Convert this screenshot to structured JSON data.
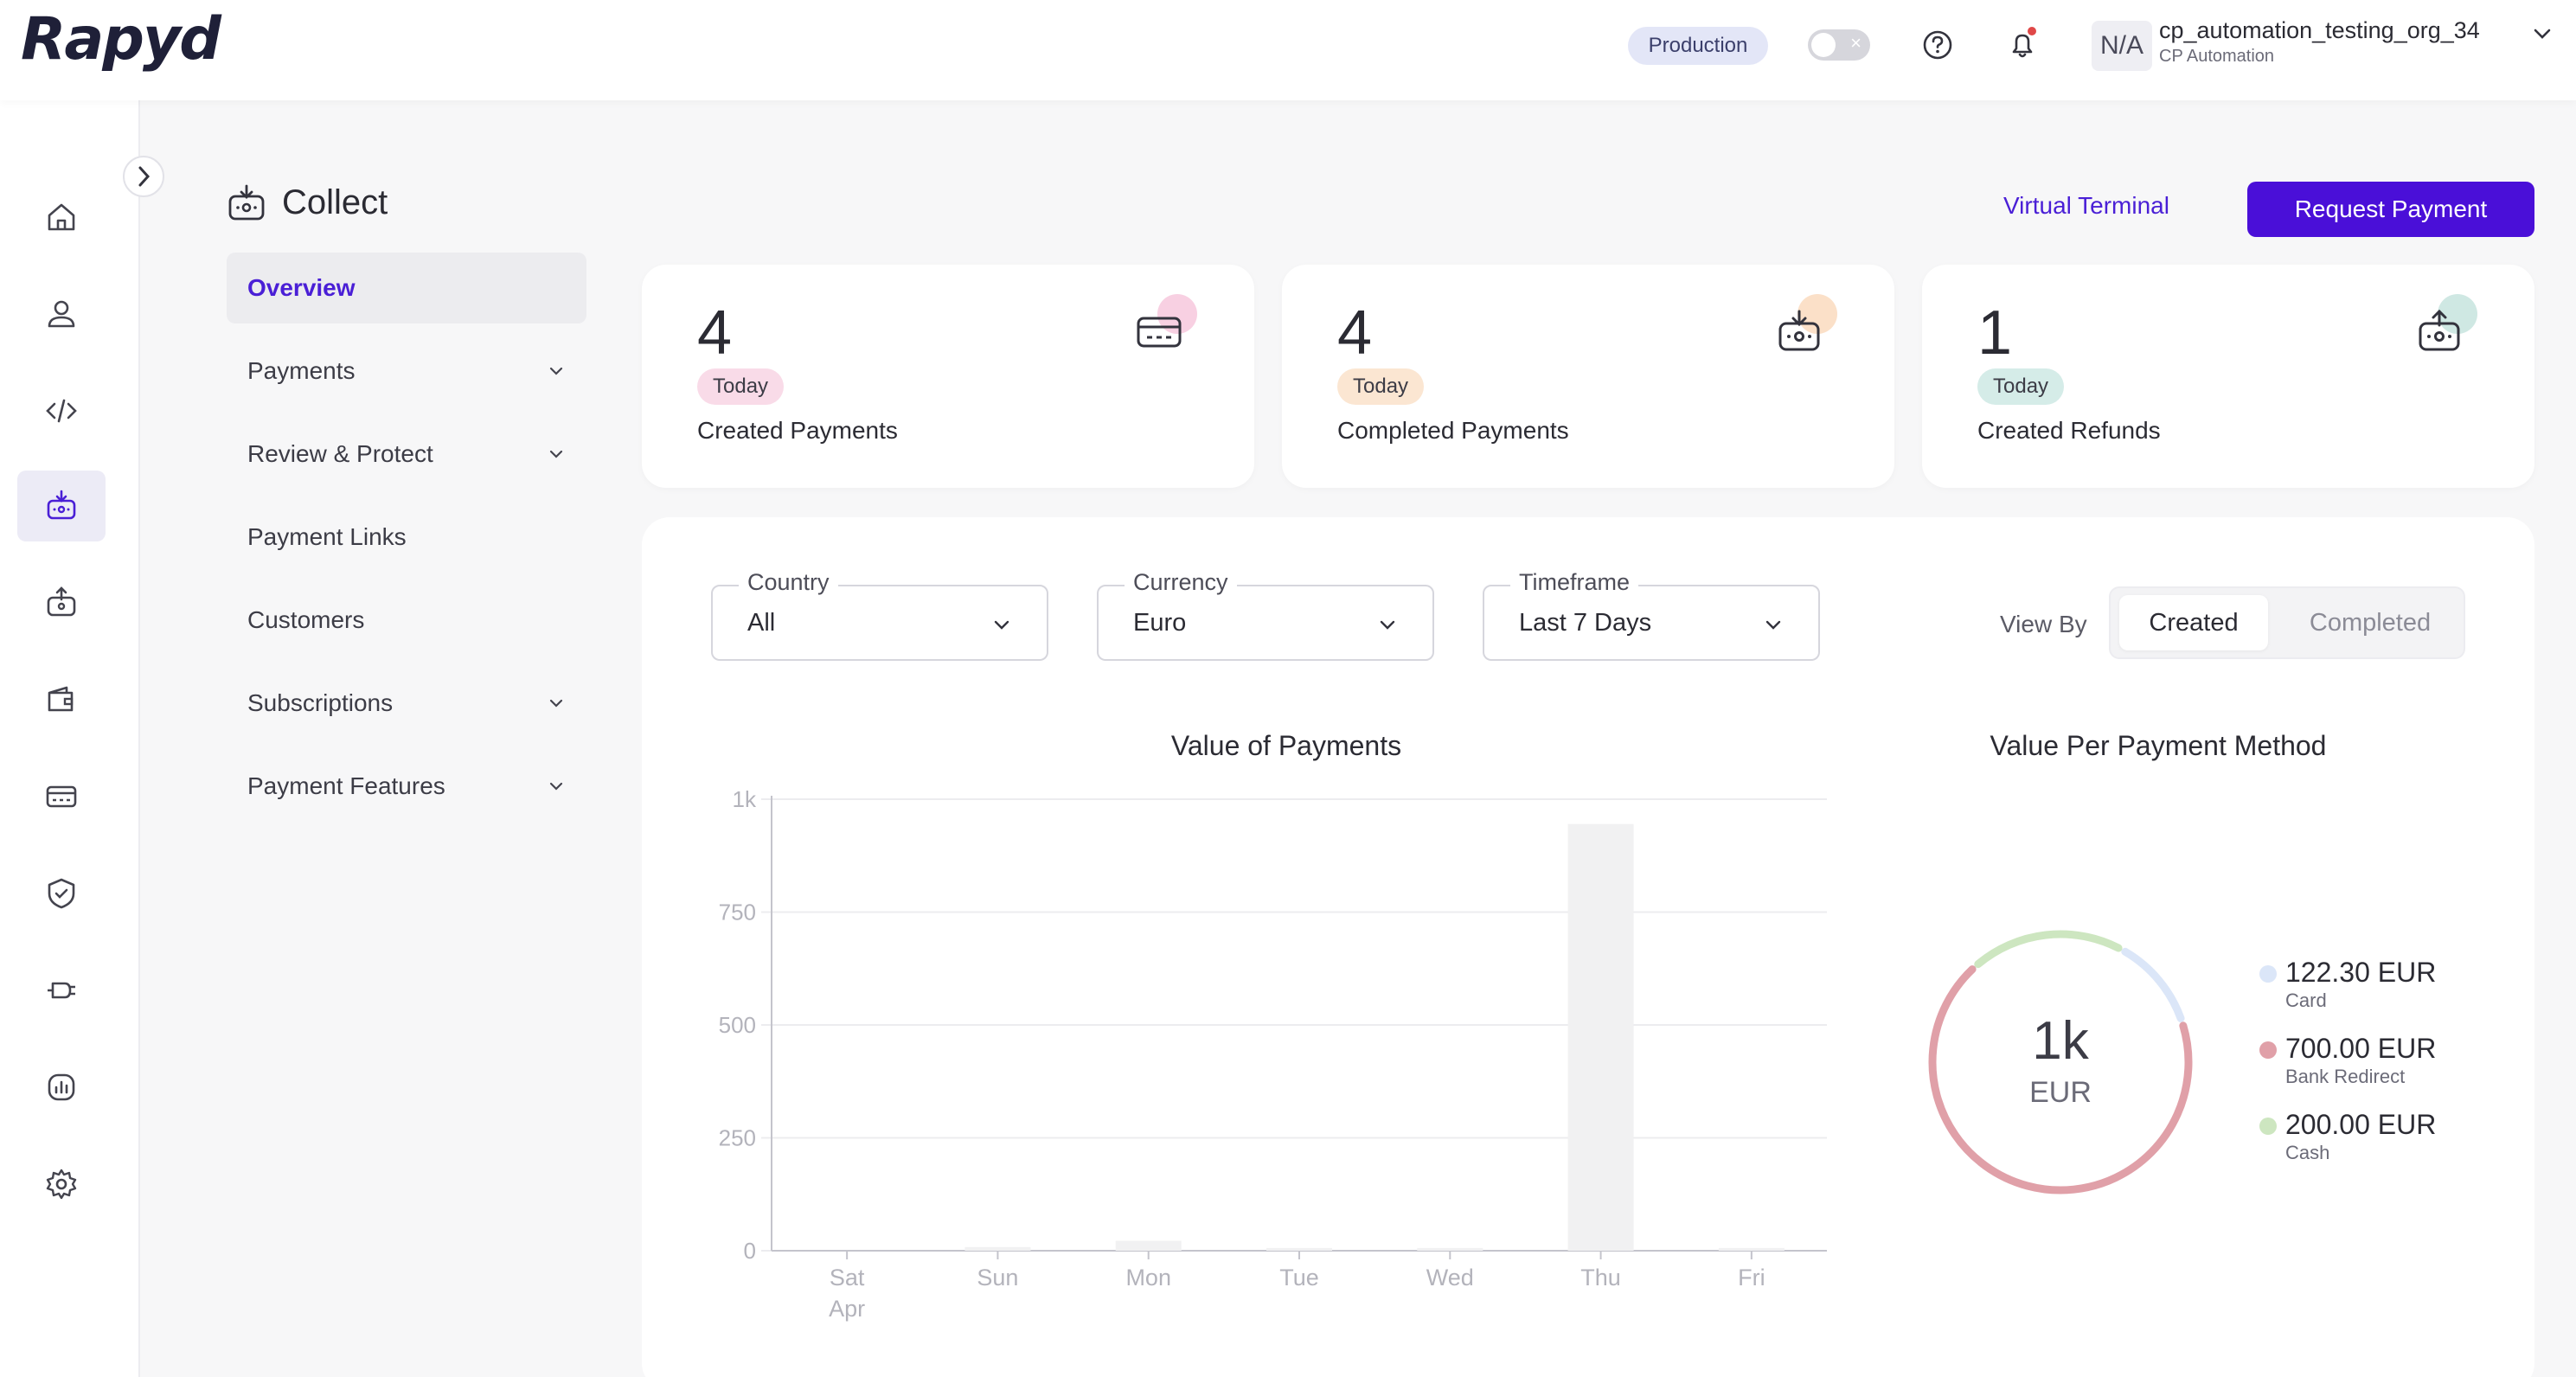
{
  "app": {
    "logo": "Rapyd"
  },
  "topbar": {
    "environment": "Production",
    "org": {
      "avatar": "N/A",
      "name": "cp_automation_testing_org_34",
      "sub": "CP Automation"
    },
    "icons": [
      "help-icon",
      "bell-icon"
    ]
  },
  "rail": {
    "items": [
      {
        "name": "home-icon"
      },
      {
        "name": "user-icon"
      },
      {
        "name": "code-icon"
      },
      {
        "name": "collect-icon",
        "active": true
      },
      {
        "name": "disburse-icon"
      },
      {
        "name": "wallet-icon"
      },
      {
        "name": "card-icon"
      },
      {
        "name": "shield-check-icon"
      },
      {
        "name": "plug-icon"
      },
      {
        "name": "reports-icon"
      },
      {
        "name": "settings-icon"
      }
    ]
  },
  "section": {
    "title": "Collect",
    "nav": [
      {
        "label": "Overview",
        "active": true,
        "expandable": false
      },
      {
        "label": "Payments",
        "expandable": true
      },
      {
        "label": "Review & Protect",
        "expandable": true
      },
      {
        "label": "Payment Links",
        "expandable": false
      },
      {
        "label": "Customers",
        "expandable": false
      },
      {
        "label": "Subscriptions",
        "expandable": true
      },
      {
        "label": "Payment Features",
        "expandable": true
      }
    ]
  },
  "actions": {
    "virtual_terminal": "Virtual Terminal",
    "request_payment": "Request Payment"
  },
  "stats": [
    {
      "value": "4",
      "badge": "Today",
      "label": "Created Payments",
      "badge_color": "#f9dbe8",
      "dot_color": "#f8d0e2"
    },
    {
      "value": "4",
      "badge": "Today",
      "label": "Completed Payments",
      "badge_color": "#fbe6d2",
      "dot_color": "#fbe0c8"
    },
    {
      "value": "1",
      "badge": "Today",
      "label": "Created Refunds",
      "badge_color": "#d5ece8",
      "dot_color": "#cfe8e3"
    }
  ],
  "filters": {
    "country": {
      "label": "Country",
      "value": "All"
    },
    "currency": {
      "label": "Currency",
      "value": "Euro"
    },
    "timeframe": {
      "label": "Timeframe",
      "value": "Last 7 Days"
    },
    "view_by": {
      "label": "View By",
      "options": [
        "Created",
        "Completed"
      ],
      "selected": "Created"
    }
  },
  "chart_data": [
    {
      "type": "bar",
      "title": "Value of Payments",
      "categories": [
        "Sat",
        "Sun",
        "Mon",
        "Tue",
        "Wed",
        "Thu",
        "Fri"
      ],
      "first_category_sub": "Apr",
      "values": [
        0,
        8,
        22,
        6,
        6,
        945,
        6
      ],
      "ylim": [
        0,
        1000
      ],
      "yticks": [
        "0",
        "250",
        "500",
        "750",
        "1k"
      ],
      "ytick_values": [
        0,
        250,
        500,
        750,
        1000
      ],
      "grid": true,
      "bar_color": "#f1f1f2"
    },
    {
      "type": "pie",
      "title": "Value Per Payment Method",
      "center_value": "1k",
      "center_unit": "EUR",
      "slices": [
        {
          "label": "Card",
          "value": 122.3,
          "display": "122.30 EUR",
          "color": "#dbe6f8"
        },
        {
          "label": "Bank Redirect",
          "value": 700.0,
          "display": "700.00 EUR",
          "color": "#e0a0a8"
        },
        {
          "label": "Cash",
          "value": 200.0,
          "display": "200.00 EUR",
          "color": "#cde6c0"
        }
      ]
    }
  ]
}
